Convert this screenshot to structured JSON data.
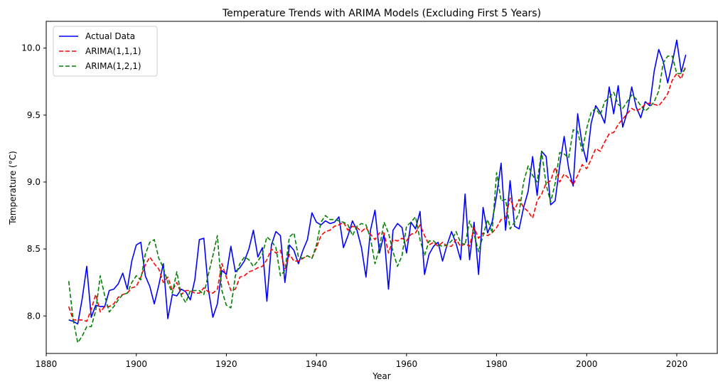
{
  "chart_data": {
    "type": "line",
    "title": "Temperature Trends with ARIMA Models (Excluding First 5 Years)",
    "xlabel": "Year",
    "ylabel": "Temperature (°C)",
    "xlim": [
      1880,
      2029
    ],
    "ylim": [
      7.72,
      10.2
    ],
    "xticks": [
      1880,
      1900,
      1920,
      1940,
      1960,
      1980,
      2000,
      2020
    ],
    "xtick_labels": [
      "1880",
      "1900",
      "1920",
      "1940",
      "1960",
      "1980",
      "2000",
      "2020"
    ],
    "yticks": [
      8.0,
      8.5,
      9.0,
      9.5,
      10.0
    ],
    "ytick_labels": [
      "8.0",
      "8.5",
      "9.0",
      "9.5",
      "10.0"
    ],
    "grid": false,
    "legend_position": "upper-left",
    "x_start": 1885,
    "x_end": 2022,
    "series": [
      {
        "name": "Actual Data",
        "color": "#0000ff",
        "dash": "solid",
        "values": [
          7.97,
          7.96,
          7.94,
          8.13,
          8.37,
          7.99,
          8.08,
          8.07,
          8.07,
          8.19,
          8.2,
          8.24,
          8.32,
          8.2,
          8.41,
          8.53,
          8.55,
          8.3,
          8.22,
          8.09,
          8.23,
          8.39,
          7.98,
          8.16,
          8.15,
          8.2,
          8.18,
          8.12,
          8.27,
          8.57,
          8.58,
          8.2,
          7.99,
          8.09,
          8.34,
          8.31,
          8.52,
          8.33,
          8.36,
          8.41,
          8.5,
          8.64,
          8.44,
          8.51,
          8.11,
          8.53,
          8.63,
          8.6,
          8.25,
          8.53,
          8.49,
          8.39,
          8.49,
          8.57,
          8.77,
          8.7,
          8.68,
          8.71,
          8.69,
          8.7,
          8.74,
          8.51,
          8.6,
          8.71,
          8.64,
          8.51,
          8.29,
          8.64,
          8.79,
          8.47,
          8.61,
          8.2,
          8.64,
          8.69,
          8.66,
          8.47,
          8.7,
          8.65,
          8.78,
          8.31,
          8.46,
          8.52,
          8.55,
          8.41,
          8.53,
          8.63,
          8.54,
          8.42,
          8.91,
          8.42,
          8.7,
          8.31,
          8.81,
          8.62,
          8.7,
          8.9,
          9.14,
          8.64,
          9.01,
          8.67,
          8.65,
          8.81,
          8.93,
          9.19,
          8.9,
          9.23,
          9.19,
          8.83,
          8.86,
          9.12,
          9.34,
          9.1,
          8.97,
          9.51,
          9.28,
          9.15,
          9.44,
          9.57,
          9.52,
          9.44,
          9.71,
          9.51,
          9.72,
          9.41,
          9.52,
          9.71,
          9.56,
          9.48,
          9.6,
          9.57,
          9.83,
          9.99,
          9.9,
          9.74,
          9.89,
          10.06,
          9.82,
          9.95
        ]
      },
      {
        "name": "ARIMA(1,1,1)",
        "color": "#ff0000",
        "dash": "dashed",
        "values": [
          8.07,
          7.97,
          7.97,
          7.97,
          7.96,
          8.05,
          8.16,
          8.03,
          8.07,
          8.07,
          8.09,
          8.14,
          8.16,
          8.17,
          8.21,
          8.22,
          8.29,
          8.38,
          8.44,
          8.39,
          8.35,
          8.25,
          8.29,
          8.19,
          8.25,
          8.16,
          8.19,
          8.19,
          8.17,
          8.17,
          8.21,
          8.18,
          8.17,
          8.2,
          8.39,
          8.29,
          8.19,
          8.2,
          8.29,
          8.3,
          8.33,
          8.34,
          8.36,
          8.37,
          8.42,
          8.5,
          8.47,
          8.49,
          8.35,
          8.46,
          8.41,
          8.41,
          8.43,
          8.45,
          8.43,
          8.51,
          8.6,
          8.63,
          8.64,
          8.67,
          8.68,
          8.7,
          8.64,
          8.67,
          8.66,
          8.63,
          8.66,
          8.61,
          8.57,
          8.62,
          8.62,
          8.47,
          8.57,
          8.56,
          8.58,
          8.56,
          8.61,
          8.62,
          8.68,
          8.6,
          8.53,
          8.55,
          8.52,
          8.55,
          8.52,
          8.52,
          8.57,
          8.52,
          8.54,
          8.52,
          8.66,
          8.58,
          8.62,
          8.6,
          8.62,
          8.66,
          8.72,
          8.73,
          8.88,
          8.79,
          8.87,
          8.81,
          8.78,
          8.73,
          8.86,
          8.91,
          8.99,
          9.01,
          9.11,
          9.0,
          9.06,
          9.03,
          8.98,
          9.05,
          9.13,
          9.1,
          9.17,
          9.25,
          9.23,
          9.3,
          9.36,
          9.37,
          9.43,
          9.47,
          9.51,
          9.55,
          9.53,
          9.55,
          9.58,
          9.59,
          9.58,
          9.57,
          9.61,
          9.66,
          9.76,
          9.81,
          9.77,
          9.87
        ]
      },
      {
        "name": "ARIMA(1,2,1)",
        "color": "#008000",
        "dash": "dashed",
        "values": [
          8.26,
          7.97,
          7.8,
          7.85,
          7.92,
          7.92,
          8.04,
          8.3,
          8.15,
          8.03,
          8.07,
          8.12,
          8.16,
          8.17,
          8.25,
          8.3,
          8.27,
          8.46,
          8.55,
          8.57,
          8.43,
          8.36,
          8.25,
          8.17,
          8.33,
          8.15,
          8.1,
          8.19,
          8.19,
          8.19,
          8.16,
          8.31,
          8.45,
          8.6,
          8.19,
          8.08,
          8.06,
          8.3,
          8.39,
          8.44,
          8.42,
          8.37,
          8.41,
          8.46,
          8.59,
          8.56,
          8.51,
          8.3,
          8.34,
          8.59,
          8.62,
          8.44,
          8.43,
          8.45,
          8.43,
          8.53,
          8.7,
          8.75,
          8.72,
          8.72,
          8.71,
          8.7,
          8.68,
          8.6,
          8.67,
          8.69,
          8.68,
          8.58,
          8.39,
          8.51,
          8.7,
          8.62,
          8.48,
          8.37,
          8.45,
          8.67,
          8.7,
          8.74,
          8.57,
          8.45,
          8.56,
          8.56,
          8.53,
          8.52,
          8.53,
          8.56,
          8.63,
          8.55,
          8.53,
          8.71,
          8.61,
          8.48,
          8.6,
          8.72,
          8.62,
          9.07,
          8.86,
          8.87,
          8.65,
          8.7,
          8.77,
          9.0,
          9.12,
          9.05,
          9.0,
          9.23,
          8.98,
          8.85,
          8.99,
          9.22,
          9.21,
          9.18,
          9.39,
          9.38,
          9.23,
          9.4,
          9.52,
          9.55,
          9.5,
          9.6,
          9.63,
          9.67,
          9.58,
          9.55,
          9.6,
          9.65,
          9.62,
          9.57,
          9.53,
          9.56,
          9.6,
          9.68,
          9.89,
          9.94,
          9.94,
          9.81,
          9.81,
          9.85
        ]
      }
    ]
  }
}
